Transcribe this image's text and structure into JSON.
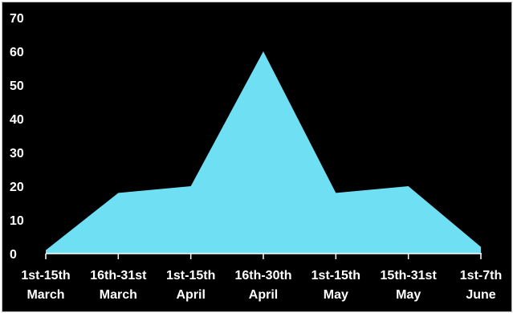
{
  "chart_data": {
    "type": "area",
    "categories": [
      [
        "1st-15th",
        "March"
      ],
      [
        "16th-31st",
        "March"
      ],
      [
        "1st-15th",
        "April"
      ],
      [
        "16th-30th",
        "April"
      ],
      [
        "1st-15th",
        "May"
      ],
      [
        "15th-31st",
        "May"
      ],
      [
        "1st-7th",
        "June"
      ]
    ],
    "series": [
      {
        "values": [
          1,
          18,
          20,
          60,
          18,
          20,
          2
        ],
        "color": "#6fe0f4"
      }
    ],
    "ylim": [
      0,
      70
    ],
    "yticks": [
      0,
      10,
      20,
      30,
      40,
      50,
      60,
      70
    ],
    "background": "#000000",
    "axis_color": "#ffffff",
    "grid": false,
    "legend": "none"
  }
}
